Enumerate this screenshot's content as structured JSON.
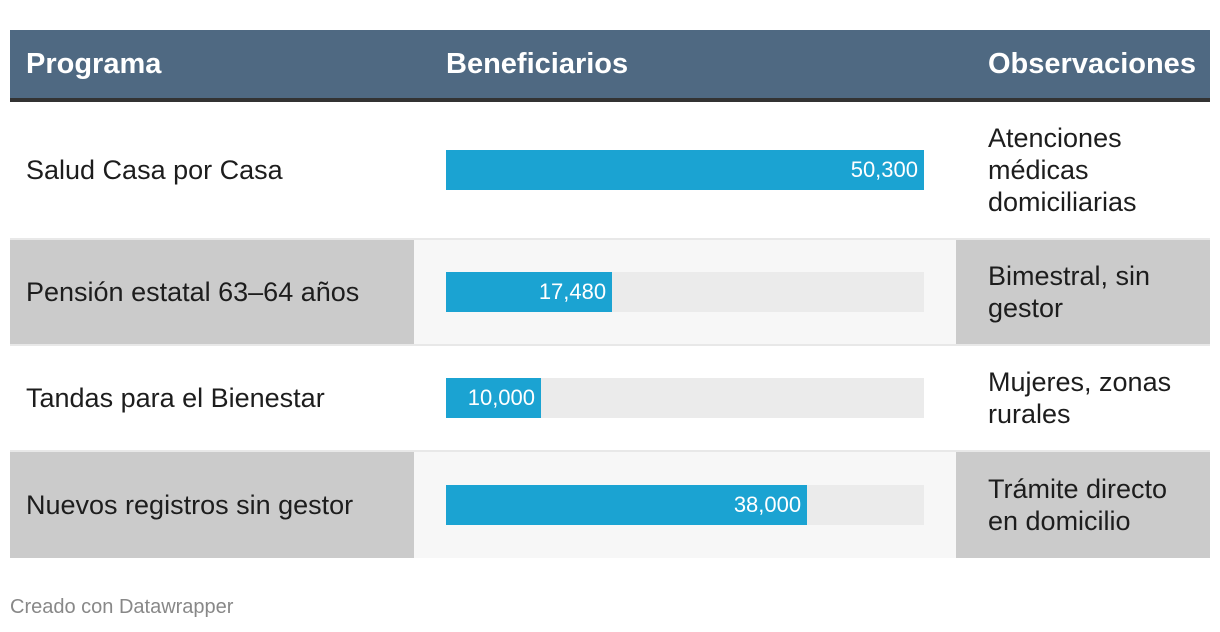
{
  "header": {
    "programa": "Programa",
    "beneficiarios": "Beneficiarios",
    "observaciones": "Observaciones"
  },
  "chart_data": {
    "type": "table",
    "columns": [
      "Programa",
      "Beneficiarios",
      "Observaciones"
    ],
    "value_max": 50300,
    "rows": [
      {
        "programa": "Salud Casa por Casa",
        "beneficiarios": 50300,
        "beneficiarios_label": "50,300",
        "observaciones": "Atenciones médicas domiciliarias"
      },
      {
        "programa": "Pensión estatal 63–64 años",
        "beneficiarios": 17480,
        "beneficiarios_label": "17,480",
        "observaciones": "Bimestral, sin gestor"
      },
      {
        "programa": "Tandas para el Bienestar",
        "beneficiarios": 10000,
        "beneficiarios_label": "10,000",
        "observaciones": "Mujeres, zonas rurales"
      },
      {
        "programa": "Nuevos registros sin gestor",
        "beneficiarios": 38000,
        "beneficiarios_label": "38,000",
        "observaciones": "Trámite directo en domicilio"
      }
    ]
  },
  "colors": {
    "header_bg": "#4f6982",
    "bar": "#1ba3d2",
    "bar_track": "#ebebeb",
    "alt_row": "#cbcbcb"
  },
  "footer": {
    "credit": "Creado con Datawrapper"
  }
}
